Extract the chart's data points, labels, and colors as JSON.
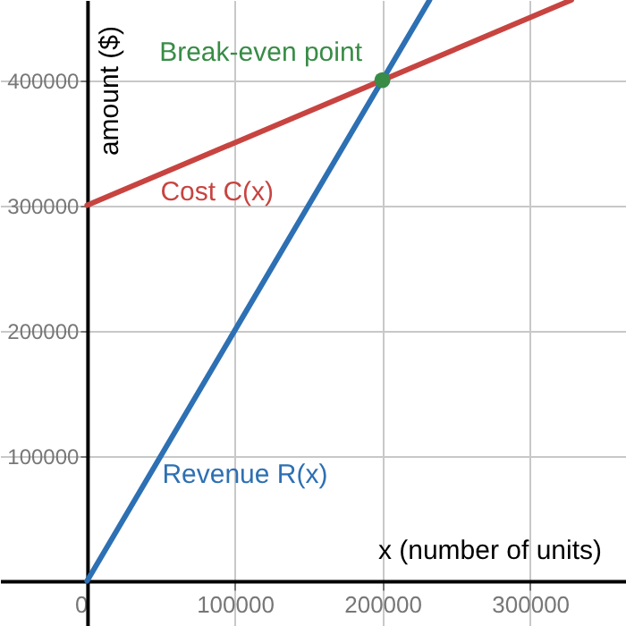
{
  "chart_data": {
    "type": "line",
    "xlabel": "x (number of units)",
    "ylabel": "amount ($)",
    "xlim": [
      -59000,
      365000
    ],
    "ylim": [
      -36000,
      464000
    ],
    "xticks": [
      0,
      100000,
      200000,
      300000
    ],
    "yticks": [
      100000,
      200000,
      300000,
      400000
    ],
    "grid": true,
    "series": [
      {
        "name": "Cost C(x)",
        "color": "#c74440",
        "x": [
          0,
          328000
        ],
        "values": [
          300000,
          464000
        ]
      },
      {
        "name": "Revenue R(x)",
        "color": "#2d70b3",
        "x": [
          0,
          232000
        ],
        "values": [
          0,
          464000
        ]
      },
      {
        "name": "Break-even point",
        "type": "scatter",
        "marker": "circle",
        "color": "#388c46",
        "x": [
          200000
        ],
        "values": [
          400000
        ]
      }
    ]
  }
}
